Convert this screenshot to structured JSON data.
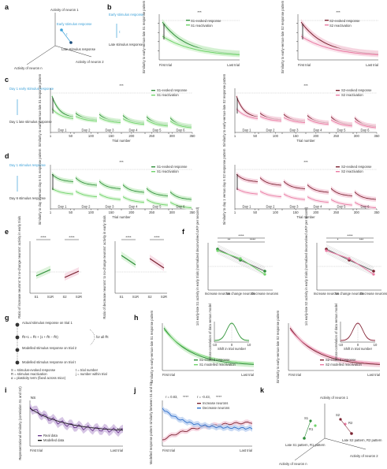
{
  "colors": {
    "green_dark": "#2f8f3a",
    "green_light": "#6fd36a",
    "green_band": "#c6ecc3",
    "red_dark": "#7a2230",
    "red_light": "#ea7aa3",
    "red_band": "#f3c7d6",
    "cyan": "#3aa0d8",
    "purple": "#6b3b8e",
    "purple_band": "#c8b2db",
    "blue": "#2f6fc9",
    "blue_band": "#b7cdf0",
    "gray": "#666666"
  },
  "labels": {
    "a": "a",
    "b": "b",
    "c": "c",
    "d": "d",
    "e": "e",
    "f": "f",
    "g": "g",
    "h": "h",
    "i": "i",
    "j": "j",
    "k": "k"
  },
  "panel_a": {
    "n1": "Activity of neuron 1",
    "early": "Early stimulus response",
    "tau": "τ",
    "late": "Late stimulus response",
    "n2": "Activity of neuron 2",
    "nn": "Activity of neuron n"
  },
  "panel_b": {
    "legend_title": "Early stimulus response",
    "tau": "τ",
    "legend_late": "Late stimulus response",
    "left": {
      "ylabel": "Similarity to early-versus-late S1 response pattern",
      "s_evoked": "S1-evoked response",
      "s_react": "S1 reactivation",
      "x0": "First trial",
      "x1": "Last trial",
      "sig": "***"
    },
    "right": {
      "ylabel": "Similarity to early-versus-late S2 response pattern",
      "s_evoked": "S2-evoked response",
      "s_react": "S2 reactivation",
      "x0": "First trial",
      "x1": "Last trial",
      "sig": "***"
    }
  },
  "panel_c": {
    "side1": "Day 1 early stimulus response",
    "side2": "Day 1 late stimulus response",
    "days": [
      "Day 1",
      "Day 2",
      "Day 3",
      "Day 4",
      "Day 5",
      "Day 6"
    ],
    "ticks": [
      "1",
      "50",
      "100",
      "150",
      "200",
      "250",
      "300",
      "350"
    ],
    "xlabel": "Trial number",
    "left": {
      "ylabel": "Similarity to early-versus-late S1 response pattern",
      "s_evoked": "S1-evoked response",
      "s_react": "S1 reactivation",
      "sig": "***"
    },
    "right": {
      "ylabel": "Similarity to early-versus-late S2 response pattern",
      "s_evoked": "S2-evoked response",
      "s_react": "S2 reactivation",
      "sig": "***"
    }
  },
  "panel_d": {
    "side1": "Day 1 stimulus response",
    "side2": "Day 6 stimulus response",
    "days": [
      "Day 1",
      "Day 2",
      "Day 3",
      "Day 4",
      "Day 5",
      "Day 6"
    ],
    "ticks": [
      "1",
      "50",
      "100",
      "150",
      "200",
      "250",
      "300",
      "350"
    ],
    "xlabel": "Trial number",
    "left": {
      "ylabel": "Similarity to day 1 versus day 6 S1 response pattern",
      "s_evoked": "S1-evoked response",
      "s_react": "S1 reactivation",
      "sig": "***"
    },
    "right": {
      "ylabel": "Similarity to day 1 versus day 6 S2 response pattern",
      "s_evoked": "S2-evoked response",
      "s_react": "S2 reactivation",
      "sig": "***"
    }
  },
  "panel_e": {
    "left": {
      "ylabel": "Ratio of increase neurons' to no-change neurons' activity in early trials",
      "cats": [
        "S1",
        "S1R",
        "S2",
        "S2R"
      ],
      "sig1": "****",
      "sig2": "****"
    },
    "right": {
      "ylabel": "Ratio of decrease neurons' to no-change neurons' activity in early trials",
      "cats": [
        "S1",
        "S1R",
        "S2",
        "S2R"
      ],
      "sig1": "****",
      "sig2": "****"
    }
  },
  "panel_f": {
    "left": {
      "ylabel": "1/4 early-late S1 activity in early trials (normalized deconvolved ΔF/F per second)",
      "cats": [
        "Increase neurons",
        "No change neurons",
        "Decrease neurons"
      ],
      "sig_top": "****",
      "sig_a": "**",
      "sig_b": "****"
    },
    "right": {
      "ylabel": "1/4 early-late S2 activity in early trials (normalized deconvolved ΔF/F per second)",
      "cats": [
        "Increase neurons",
        "No change neurons",
        "Decrease neurons"
      ],
      "sig_top": "****",
      "sig_a": "*",
      "sig_b": "***"
    }
  },
  "panel_g": {
    "rows": [
      {
        "sym": "R1",
        "text": "Actual stimulus response on trial 1"
      },
      {
        "sym": "R2",
        "text": "R̂t+1 = R̂t + (1 + R̂t − R̂t)"
      },
      {
        "sym": "R3",
        "text": "Modelled stimulus response on trial 2"
      },
      {
        "sym": "Rt",
        "text": "Modelled stimulus response on trial t"
      }
    ],
    "for_all": "for all R̂t",
    "legend": [
      "S = stimulus-evoked response",
      "R = stimulus reactivation",
      "α = plasticity term (fixed across mice)",
      "t = trial number",
      "j = number within trial"
    ]
  },
  "panel_h": {
    "left": {
      "ylabel": "Similarity to early-versus-late S1 response pattern",
      "s_real": "S1-evoked response",
      "s_model": "S1 modelled reactivation",
      "x0": "First trial",
      "x1": "Last trial"
    },
    "right": {
      "ylabel": "Similarity to early-versus-late S2 response pattern",
      "s_real": "S2-evoked response",
      "s_model": "S2 modelled reactivation",
      "x0": "First trial",
      "x1": "Last trial"
    },
    "inset": {
      "ylabel": "Cross-correlation of data versus model",
      "xlabel": "Shift in trial number",
      "ticks": [
        "-10",
        "0",
        "10"
      ]
    }
  },
  "panel_i": {
    "ylabel": "Representational similarity (correlation S1 and S2)",
    "legend_real": "Real data",
    "legend_model": "Modelled data",
    "x0": "First trial",
    "x1": "Last trial",
    "ns1": "NS",
    "ns2": "NS"
  },
  "panel_j": {
    "ylabel": "Modelled response pattern similarity between S1 and S2",
    "stat1": "r = 0.83,",
    "stat1b": "****",
    "stat2": "r = -0.43,",
    "stat2b": "****",
    "legend_inc": "Increase neurons",
    "legend_dec": "Decrease neurons",
    "x0": "First trial",
    "x1": "Last trial"
  },
  "panel_k": {
    "n1": "Activity of neuron 1",
    "s1": "S1",
    "r1": "R1",
    "s2": "S2",
    "r2": "R2",
    "late_s1": "Late S1 pattern, R1 pattern",
    "late_s2": "Late S2 pattern, R2 pattern",
    "nn": "Activity of neuron n",
    "n2": "Activity of neuron 2"
  }
}
